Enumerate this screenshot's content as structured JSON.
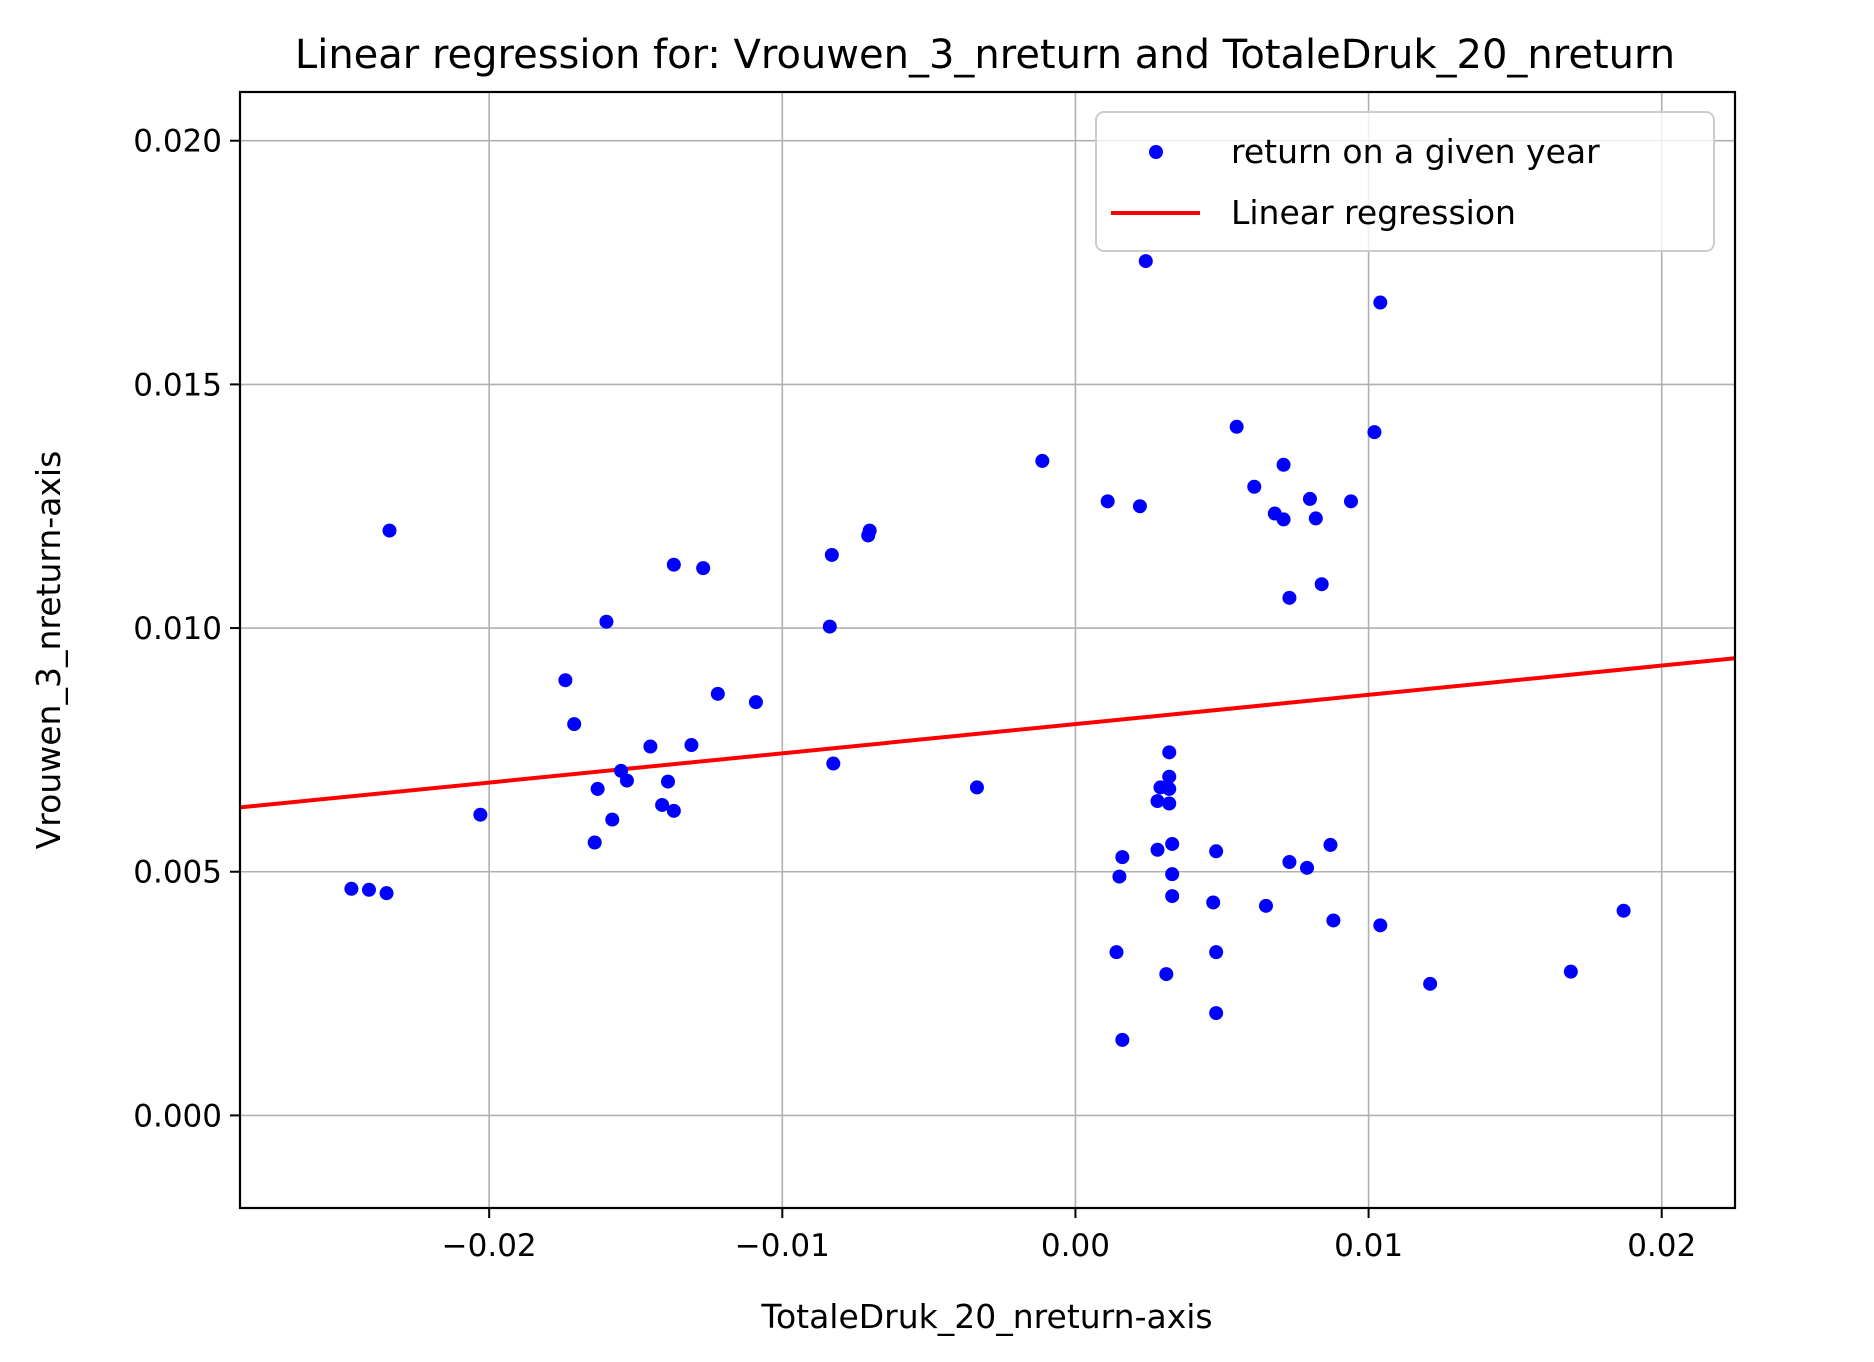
{
  "chart_data": {
    "type": "scatter",
    "title": "Linear regression for: Vrouwen_3_nreturn and TotaleDruk_20_nreturn",
    "xlabel": "TotaleDruk_20_nreturn-axis",
    "ylabel": "Vrouwen_3_nreturn-axis",
    "xlim": [
      -0.0285,
      0.0225
    ],
    "ylim": [
      -0.0019,
      0.021
    ],
    "x_ticks": [
      -0.02,
      -0.01,
      0.0,
      0.01,
      0.02
    ],
    "x_tick_labels": [
      "−0.02",
      "−0.01",
      "0.00",
      "0.01",
      "0.02"
    ],
    "y_ticks": [
      0.0,
      0.005,
      0.01,
      0.015,
      0.02
    ],
    "y_tick_labels": [
      "0.000",
      "0.005",
      "0.010",
      "0.015",
      "0.020"
    ],
    "grid": true,
    "legend_position": "top-right",
    "series": [
      {
        "name": "return on a given year",
        "kind": "scatter",
        "color": "#0000ff",
        "points": [
          [
            -0.0247,
            0.00465
          ],
          [
            -0.0241,
            0.00463
          ],
          [
            -0.0235,
            0.00456
          ],
          [
            -0.0234,
            0.012
          ],
          [
            -0.0203,
            0.00617
          ],
          [
            -0.0174,
            0.00893
          ],
          [
            -0.0171,
            0.00803
          ],
          [
            -0.0164,
            0.0056
          ],
          [
            -0.0163,
            0.0067
          ],
          [
            -0.016,
            0.01013
          ],
          [
            -0.0158,
            0.00607
          ],
          [
            -0.0155,
            0.00707
          ],
          [
            -0.0153,
            0.00687
          ],
          [
            -0.0145,
            0.00757
          ],
          [
            -0.0141,
            0.00637
          ],
          [
            -0.0139,
            0.00685
          ],
          [
            -0.0137,
            0.00625
          ],
          [
            -0.0137,
            0.0113
          ],
          [
            -0.0131,
            0.0076
          ],
          [
            -0.0127,
            0.01123
          ],
          [
            -0.0122,
            0.00865
          ],
          [
            -0.0109,
            0.00848
          ],
          [
            -0.00838,
            0.01003
          ],
          [
            -0.00831,
            0.0115
          ],
          [
            -0.00826,
            0.00722
          ],
          [
            -0.00707,
            0.0119
          ],
          [
            -0.00702,
            0.012
          ],
          [
            -0.00336,
            0.00673
          ],
          [
            -0.00113,
            0.01343
          ],
          [
            0.0011,
            0.0126
          ],
          [
            0.0014,
            0.00335
          ],
          [
            0.0015,
            0.0049
          ],
          [
            0.0016,
            0.00155
          ],
          [
            0.0016,
            0.0053
          ],
          [
            0.0022,
            0.0125
          ],
          [
            0.0024,
            0.01753
          ],
          [
            0.0028,
            0.00545
          ],
          [
            0.0028,
            0.00645
          ],
          [
            0.0029,
            0.00673
          ],
          [
            0.0031,
            0.0029
          ],
          [
            0.0032,
            0.0064
          ],
          [
            0.0032,
            0.0067
          ],
          [
            0.0032,
            0.00695
          ],
          [
            0.0032,
            0.00745
          ],
          [
            0.0033,
            0.00495
          ],
          [
            0.0033,
            0.0045
          ],
          [
            0.0033,
            0.00557
          ],
          [
            0.0047,
            0.00437
          ],
          [
            0.0048,
            0.0021
          ],
          [
            0.0048,
            0.00335
          ],
          [
            0.0048,
            0.00542
          ],
          [
            0.0055,
            0.01413
          ],
          [
            0.0061,
            0.0129
          ],
          [
            0.0065,
            0.0043
          ],
          [
            0.0068,
            0.01235
          ],
          [
            0.0071,
            0.01223
          ],
          [
            0.0071,
            0.01335
          ],
          [
            0.0073,
            0.01062
          ],
          [
            0.0073,
            0.0052
          ],
          [
            0.0079,
            0.00508
          ],
          [
            0.008,
            0.01265
          ],
          [
            0.0082,
            0.01225
          ],
          [
            0.0084,
            0.0109
          ],
          [
            0.0087,
            0.00555
          ],
          [
            0.0088,
            0.004
          ],
          [
            0.0094,
            0.0126
          ],
          [
            0.0102,
            0.01402
          ],
          [
            0.0104,
            0.01668
          ],
          [
            0.0104,
            0.0039
          ],
          [
            0.0121,
            0.0027
          ],
          [
            0.0169,
            0.00295
          ],
          [
            0.0187,
            0.0042
          ]
        ]
      },
      {
        "name": "Linear regression",
        "kind": "line",
        "color": "#ff0000",
        "x": [
          -0.0285,
          0.0225
        ],
        "y": [
          0.00632,
          0.00938
        ]
      }
    ]
  }
}
